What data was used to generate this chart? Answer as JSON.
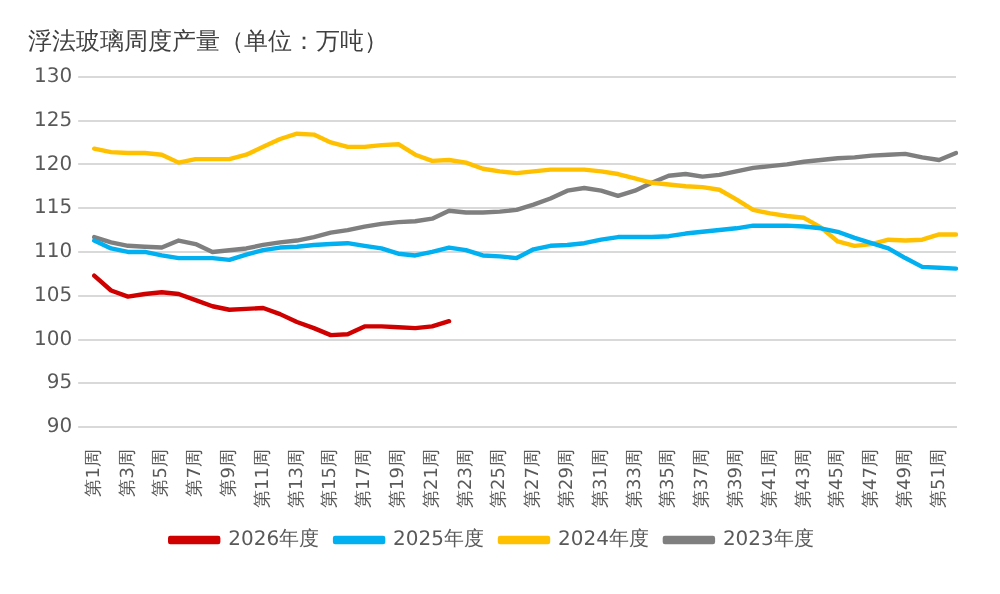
{
  "chart_data": {
    "type": "line",
    "title": "浮法玻璃周度产量（单位：万吨）",
    "categories": [
      "第1周",
      null,
      "第3周",
      null,
      "第5周",
      null,
      "第7周",
      null,
      "第9周",
      null,
      "第11周",
      null,
      "第13周",
      null,
      "第15周",
      null,
      "第17周",
      null,
      "第19周",
      null,
      "第21周",
      null,
      "第23周",
      null,
      "第25周",
      null,
      "第27周",
      null,
      "第29周",
      null,
      "第31周",
      null,
      "第33周",
      null,
      "第35周",
      null,
      "第37周",
      null,
      "第39周",
      null,
      "第41周",
      null,
      "第43周",
      null,
      "第45周",
      null,
      "第47周",
      null,
      "第49周",
      null,
      "第51周",
      null
    ],
    "series": [
      {
        "name": "2026年度",
        "color": "#d00000",
        "values": [
          107.3,
          105.6,
          104.9,
          105.2,
          105.4,
          105.2,
          104.5,
          103.8,
          103.4,
          103.5,
          103.6,
          102.9,
          102,
          101.3,
          100.5,
          100.6,
          101.5,
          101.5,
          101.4,
          101.3,
          101.5,
          102.1,
          null,
          null,
          null,
          null,
          null,
          null,
          null,
          null,
          null,
          null,
          null,
          null,
          null,
          null,
          null,
          null,
          null,
          null,
          null,
          null,
          null,
          null,
          null,
          null,
          null,
          null,
          null,
          null,
          null,
          null
        ]
      },
      {
        "name": "2025年度",
        "color": "#00b0f0",
        "values": [
          111.3,
          110.4,
          110,
          110,
          109.6,
          109.3,
          109.3,
          109.3,
          109.1,
          109.7,
          110.2,
          110.5,
          110.6,
          110.8,
          110.9,
          111,
          110.7,
          110.4,
          109.8,
          109.6,
          110,
          110.5,
          110.2,
          109.6,
          109.5,
          109.3,
          110.3,
          110.7,
          110.8,
          111,
          111.4,
          111.7,
          111.7,
          111.7,
          111.8,
          112.1,
          112.3,
          112.5,
          112.7,
          113,
          113,
          113,
          112.9,
          112.7,
          112.3,
          111.6,
          111,
          110.4,
          109.3,
          108.3,
          108.2,
          108.1
        ]
      },
      {
        "name": "2024年度",
        "color": "#ffc000",
        "values": [
          121.8,
          121.4,
          121.3,
          121.3,
          121.1,
          120.2,
          120.6,
          120.6,
          120.6,
          121.1,
          122,
          122.9,
          123.5,
          123.4,
          122.5,
          122,
          122,
          122.2,
          122.3,
          121.1,
          120.4,
          120.5,
          120.2,
          119.5,
          119.2,
          119,
          119.2,
          119.4,
          119.4,
          119.4,
          119.2,
          118.9,
          118.4,
          117.9,
          117.7,
          117.5,
          117.4,
          117.1,
          116,
          114.8,
          114.4,
          114.1,
          113.9,
          112.8,
          111.2,
          110.7,
          110.9,
          111.4,
          111.3,
          111.4,
          112,
          112
        ]
      },
      {
        "name": "2023年度",
        "color": "#7f7f7f",
        "values": [
          111.7,
          111.1,
          110.7,
          110.6,
          110.5,
          111.3,
          110.9,
          110,
          110.2,
          110.4,
          110.8,
          111.1,
          111.3,
          111.7,
          112.2,
          112.5,
          112.9,
          113.2,
          113.4,
          113.5,
          113.8,
          114.7,
          114.5,
          114.5,
          114.6,
          114.8,
          115.4,
          116.1,
          117,
          117.3,
          117,
          116.4,
          117,
          117.9,
          118.7,
          118.9,
          118.6,
          118.8,
          119.2,
          119.6,
          119.8,
          120,
          120.3,
          120.5,
          120.7,
          120.8,
          121,
          121.1,
          121.2,
          120.8,
          120.5,
          121.3
        ]
      }
    ],
    "ylim": [
      90,
      130
    ],
    "yticks": [
      90,
      95,
      100,
      105,
      110,
      115,
      120,
      125,
      130
    ],
    "grid": "y",
    "legend": "bottom",
    "marker": "none",
    "line_style": "solid"
  }
}
